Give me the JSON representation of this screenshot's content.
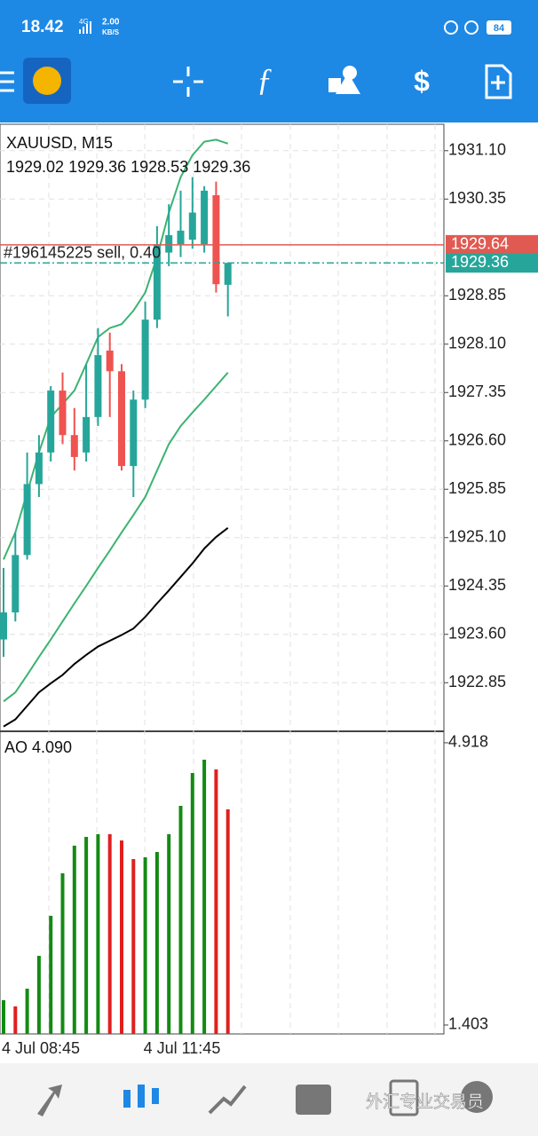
{
  "status_bar": {
    "time": "18.42",
    "network": "4G",
    "speed": "2.00",
    "speed_unit": "KB/S",
    "battery": "84"
  },
  "watermark": "外汇专业交易员",
  "chart_data": [
    {
      "type": "candlestick",
      "title": "XAUUSD, M15",
      "ohlc_text": "1929.02 1929.36 1928.53 1929.36",
      "categories": [
        "4 Jul 08:45",
        null,
        null,
        null,
        null,
        null,
        null,
        null,
        null,
        null,
        null,
        null,
        "4 Jul 11:45",
        null,
        null,
        null,
        null,
        null,
        null,
        null
      ],
      "open": [
        1923.52,
        1923.94,
        1924.83,
        1925.93,
        1926.42,
        1927.38,
        1926.69,
        1926.42,
        1926.97,
        1928.0,
        1927.68,
        1926.21,
        1927.24,
        1928.48,
        1929.52,
        1929.65,
        1929.72,
        1929.65,
        1930.41,
        1929.02
      ],
      "high": [
        1924.63,
        1925.18,
        1926.42,
        1926.69,
        1927.45,
        1927.66,
        1927.11,
        1927.79,
        1928.35,
        1928.28,
        1927.79,
        1927.38,
        1928.76,
        1929.93,
        1930.27,
        1930.48,
        1930.69,
        1930.55,
        1930.62,
        1929.36
      ],
      "low": [
        1923.25,
        1923.8,
        1924.76,
        1925.73,
        1926.28,
        1926.55,
        1926.14,
        1926.28,
        1926.83,
        1926.97,
        1926.14,
        1925.73,
        1927.11,
        1928.35,
        1929.31,
        1929.45,
        1929.58,
        1929.52,
        1928.9,
        1928.53
      ],
      "close": [
        1923.94,
        1924.83,
        1925.93,
        1926.42,
        1927.38,
        1926.69,
        1926.35,
        1926.97,
        1927.93,
        1927.68,
        1926.21,
        1927.24,
        1928.48,
        1929.65,
        1929.79,
        1929.86,
        1930.14,
        1930.48,
        1929.03,
        1929.36
      ],
      "up_color": "#26a69a",
      "down_color": "#ef5350",
      "lines": [
        {
          "color": "#3cb371",
          "values": [
            1924.76,
            1925.18,
            1925.8,
            1926.42,
            1926.97,
            1927.17,
            1927.38,
            1927.79,
            1928.21,
            1928.35,
            1928.41,
            1928.62,
            1928.9,
            1929.45,
            1930.14,
            1930.69,
            1931.03,
            1931.24,
            1931.27,
            1931.21
          ]
        },
        {
          "color": "#3cb371",
          "values": [
            1922.56,
            1922.7,
            1922.97,
            1923.25,
            1923.52,
            1923.8,
            1924.08,
            1924.35,
            1924.63,
            1924.9,
            1925.18,
            1925.45,
            1925.73,
            1926.14,
            1926.55,
            1926.83,
            1927.04,
            1927.24,
            1927.45,
            1927.66
          ]
        },
        {
          "color": "#000000",
          "values": [
            1922.17,
            1922.28,
            1922.49,
            1922.7,
            1922.84,
            1922.97,
            1923.14,
            1923.28,
            1923.41,
            1923.5,
            1923.59,
            1923.69,
            1923.87,
            1924.08,
            1924.28,
            1924.49,
            1924.7,
            1924.93,
            1925.11,
            1925.25
          ]
        }
      ],
      "order_line": {
        "label": "#196145225 sell, 0.40",
        "value": 1929.64,
        "value_label": "1929.64",
        "color": "#e05a52"
      },
      "bid_line": {
        "value": 1929.36,
        "color": "#26a69a"
      },
      "ylim": [
        1922.11,
        1931.51
      ],
      "yticks": [
        {
          "value": 1931.1,
          "label": "1931.10"
        },
        1930.35,
        1928.85,
        {
          "value": 1928.1,
          "label": "1928.10"
        },
        1927.35,
        {
          "value": 1926.6,
          "label": "1926.60"
        },
        1925.85,
        {
          "value": 1925.1,
          "label": "1925.10"
        },
        1924.35,
        {
          "value": 1923.6,
          "label": "1923.60"
        },
        1922.85
      ],
      "grid": true
    },
    {
      "type": "ao",
      "title": "AO 4.090",
      "values": [
        1.713,
        1.635,
        1.856,
        2.265,
        2.763,
        3.293,
        3.636,
        3.746,
        3.78,
        3.78,
        3.702,
        3.47,
        3.492,
        3.558,
        3.78,
        4.133,
        4.542,
        4.708,
        4.586,
        4.09
      ],
      "up_color": "#138a13",
      "down_color": "#e0201e",
      "ylim": [
        1.292,
        5.05
      ],
      "yticks": [
        4.918,
        1.403
      ]
    }
  ]
}
